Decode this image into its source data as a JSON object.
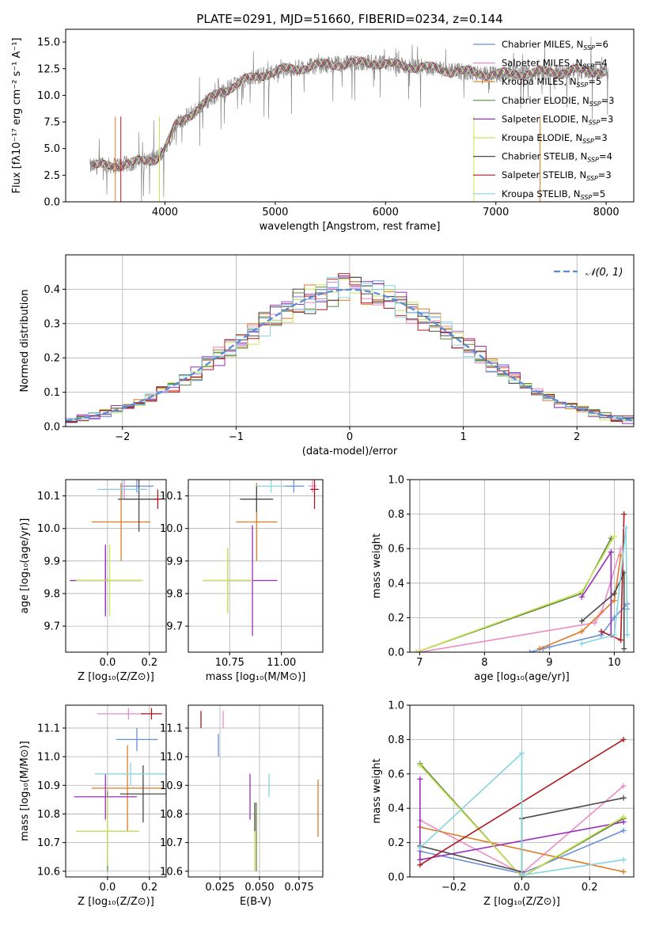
{
  "colors": {
    "chabrier_miles": "#6a8fd8",
    "salpeter_miles": "#ec8bc3",
    "kroupa_miles": "#e07b26",
    "chabrier_elodie": "#5f8a3c",
    "salpeter_elodie": "#9a2fbf",
    "kroupa_elodie": "#cde35c",
    "chabrier_stelib": "#4a4a4a",
    "salpeter_stelib": "#b0181f",
    "kroupa_stelib": "#86d6e0",
    "normal_curve": "#5b8bd6"
  },
  "chart_data": [
    {
      "id": "spectrum",
      "type": "line",
      "title": "PLATE=0291, MJD=51660, FIBERID=0234, z=0.144",
      "xlabel": "wavelength [Angstrom, rest frame]",
      "ylabel": "Flux [fλ10⁻¹⁷ erg cm⁻² s⁻¹ A⁻¹]",
      "xlim": [
        3100,
        8250
      ],
      "ylim": [
        0,
        16.2
      ],
      "xticks": [
        4000,
        5000,
        6000,
        7000,
        8000
      ],
      "yticks": [
        0.0,
        2.5,
        5.0,
        7.5,
        10.0,
        12.5,
        15.0
      ],
      "data_range": [
        3320,
        8020
      ],
      "continuum": [
        [
          3320,
          3.3
        ],
        [
          3500,
          3.4
        ],
        [
          3700,
          3.6
        ],
        [
          3900,
          4.0
        ],
        [
          3980,
          4.6
        ],
        [
          4100,
          7.2
        ],
        [
          4300,
          8.8
        ],
        [
          4500,
          10.3
        ],
        [
          4700,
          11.3
        ],
        [
          4900,
          12.0
        ],
        [
          5100,
          12.4
        ],
        [
          5300,
          12.7
        ],
        [
          5500,
          12.9
        ],
        [
          5700,
          13.0
        ],
        [
          5900,
          13.1
        ],
        [
          6100,
          12.8
        ],
        [
          6300,
          12.7
        ],
        [
          6500,
          12.4
        ],
        [
          6700,
          12.2
        ],
        [
          6900,
          12.0
        ],
        [
          7100,
          12.0
        ],
        [
          7300,
          12.1
        ],
        [
          7500,
          12.2
        ],
        [
          7700,
          12.3
        ],
        [
          7900,
          12.3
        ],
        [
          8020,
          12.2
        ]
      ],
      "legend": [
        {
          "label": "Chabrier MILES, N",
          "sub": "SSP",
          "n": "=6",
          "color": "#6a8fd8"
        },
        {
          "label": "Salpeter MILES, N",
          "sub": "SSP",
          "n": "=4",
          "color": "#ec8bc3"
        },
        {
          "label": "Kroupa MILES, N",
          "sub": "SSP",
          "n": "=5",
          "color": "#e07b26"
        },
        {
          "label": "Chabrier ELODIE, N",
          "sub": "SSP",
          "n": "=3",
          "color": "#5f8a3c"
        },
        {
          "label": "Salpeter ELODIE, N",
          "sub": "SSP",
          "n": "=3",
          "color": "#9a2fbf"
        },
        {
          "label": "Kroupa ELODIE, N",
          "sub": "SSP",
          "n": "=3",
          "color": "#cde35c"
        },
        {
          "label": "Chabrier STELIB, N",
          "sub": "SSP",
          "n": "=4",
          "color": "#4a4a4a"
        },
        {
          "label": "Salpeter STELIB, N",
          "sub": "SSP",
          "n": "=3",
          "color": "#b0181f"
        },
        {
          "label": "Kroupa STELIB, N",
          "sub": "SSP",
          "n": "=5",
          "color": "#86d6e0"
        }
      ]
    },
    {
      "id": "residuals",
      "type": "histogram",
      "xlabel": "(data-model)/error",
      "ylabel": "Normed distribution",
      "xlim": [
        -2.5,
        2.5
      ],
      "ylim": [
        0,
        0.5
      ],
      "xticks": [
        -2,
        -1,
        0,
        1,
        2
      ],
      "yticks": [
        0.0,
        0.1,
        0.2,
        0.3,
        0.4
      ],
      "grid": true,
      "bins": 50,
      "legend": [
        {
          "label": "𝒩(0, 1)",
          "color": "#5b8bd6",
          "style": "dashed"
        }
      ]
    },
    {
      "id": "age_vs_Z",
      "type": "errorbar",
      "xlabel": "Z [log₁₀(Z/Z⊙)]",
      "ylabel": "age  [log₁₀(age/yr)]",
      "xlim": [
        -0.2,
        0.28
      ],
      "ylim": [
        9.62,
        10.15
      ],
      "xticks": [
        0.0,
        0.2
      ],
      "yticks": [
        9.7,
        9.8,
        9.9,
        10.0,
        10.1
      ],
      "grid": true,
      "points": [
        {
          "x": 0.14,
          "y": 10.13,
          "xerr": 0.08,
          "yerr": 0.02,
          "color": "#6a8fd8"
        },
        {
          "x": 0.08,
          "y": 10.12,
          "xerr": 0.1,
          "yerr": 0.03,
          "color": "#ec8bc3"
        },
        {
          "x": 0.065,
          "y": 10.02,
          "xerr": 0.14,
          "yerr": 0.12,
          "color": "#e07b26"
        },
        {
          "x": -0.01,
          "y": 9.84,
          "xerr": 0.17,
          "yerr": 0.1,
          "color": "#5f8a3c"
        },
        {
          "x": -0.01,
          "y": 9.84,
          "xerr": 0.17,
          "yerr": 0.11,
          "color": "#9a2fbf"
        },
        {
          "x": 0.01,
          "y": 9.84,
          "xerr": 0.16,
          "yerr": 0.11,
          "color": "#cde35c"
        },
        {
          "x": 0.15,
          "y": 10.09,
          "xerr": 0.1,
          "yerr": 0.1,
          "color": "#4a4a4a"
        },
        {
          "x": 0.24,
          "y": 10.09,
          "xerr": 0.02,
          "yerr": 0.03,
          "color": "#b0181f"
        },
        {
          "x": 0.07,
          "y": 10.12,
          "xerr": 0.12,
          "yerr": 0.03,
          "color": "#86d6e0"
        }
      ]
    },
    {
      "id": "age_vs_mass",
      "type": "errorbar",
      "xlabel": "mass [log₁₀(M/M⊙)]",
      "ylabel": "",
      "xlim": [
        10.55,
        11.2
      ],
      "ylim": [
        9.62,
        10.15
      ],
      "xticks": [
        10.75,
        11.0
      ],
      "yticks": [
        9.7,
        9.8,
        9.9,
        10.0,
        10.1
      ],
      "grid": true,
      "points": [
        {
          "x": 11.06,
          "y": 10.13,
          "xerr": 0.05,
          "yerr": 0.02,
          "color": "#6a8fd8"
        },
        {
          "x": 11.15,
          "y": 10.13,
          "xerr": 0.02,
          "yerr": 0.02,
          "color": "#ec8bc3"
        },
        {
          "x": 10.88,
          "y": 10.02,
          "xerr": 0.1,
          "yerr": 0.12,
          "color": "#e07b26"
        },
        {
          "x": 10.74,
          "y": 9.84,
          "xerr": 0.12,
          "yerr": 0.1,
          "color": "#5f8a3c"
        },
        {
          "x": 10.86,
          "y": 9.84,
          "xerr": 0.12,
          "yerr": 0.17,
          "color": "#9a2fbf"
        },
        {
          "x": 10.74,
          "y": 9.84,
          "xerr": 0.12,
          "yerr": 0.1,
          "color": "#cde35c"
        },
        {
          "x": 10.88,
          "y": 10.09,
          "xerr": 0.08,
          "yerr": 0.04,
          "color": "#4a4a4a"
        },
        {
          "x": 11.16,
          "y": 10.12,
          "xerr": 0.02,
          "yerr": 0.06,
          "color": "#b0181f"
        },
        {
          "x": 10.95,
          "y": 10.13,
          "xerr": 0.07,
          "yerr": 0.02,
          "color": "#86d6e0"
        }
      ]
    },
    {
      "id": "massweight_vs_age",
      "type": "line",
      "xlabel": "age  [log₁₀(age/yr)]",
      "ylabel": "mass weight",
      "xlim": [
        6.85,
        10.3
      ],
      "ylim": [
        0,
        1
      ],
      "xticks": [
        7,
        8,
        9,
        10
      ],
      "yticks": [
        0.0,
        0.2,
        0.4,
        0.6,
        0.8,
        1.0
      ],
      "grid": true,
      "series": [
        {
          "color": "#6a8fd8",
          "points": [
            [
              8.7,
              0.0
            ],
            [
              8.9,
              0.02
            ],
            [
              9.0,
              0.03
            ],
            [
              9.8,
              0.1
            ],
            [
              10.0,
              0.2
            ],
            [
              10.2,
              0.28
            ],
            [
              10.2,
              0.25
            ]
          ]
        },
        {
          "color": "#ec8bc3",
          "points": [
            [
              7.0,
              0.0
            ],
            [
              9.7,
              0.17
            ],
            [
              9.8,
              0.23
            ],
            [
              10.1,
              0.6
            ]
          ]
        },
        {
          "color": "#e07b26",
          "points": [
            [
              8.85,
              0.02
            ],
            [
              9.5,
              0.12
            ],
            [
              10.0,
              0.3
            ],
            [
              10.1,
              0.56
            ]
          ]
        },
        {
          "color": "#5f8a3c",
          "points": [
            [
              6.95,
              0.0
            ],
            [
              9.5,
              0.34
            ],
            [
              9.95,
              0.66
            ]
          ]
        },
        {
          "color": "#9a2fbf",
          "points": [
            [
              9.5,
              0.32
            ],
            [
              9.95,
              0.58
            ],
            [
              9.95,
              0.1
            ]
          ]
        },
        {
          "color": "#cde35c",
          "points": [
            [
              6.95,
              0.0
            ],
            [
              9.5,
              0.35
            ],
            [
              10.0,
              0.67
            ]
          ]
        },
        {
          "color": "#4a4a4a",
          "points": [
            [
              9.5,
              0.18
            ],
            [
              10.0,
              0.34
            ],
            [
              10.15,
              0.46
            ],
            [
              10.15,
              0.02
            ]
          ]
        },
        {
          "color": "#b0181f",
          "points": [
            [
              9.8,
              0.12
            ],
            [
              10.1,
              0.07
            ],
            [
              10.15,
              0.8
            ]
          ]
        },
        {
          "color": "#86d6e0",
          "points": [
            [
              9.5,
              0.05
            ],
            [
              10.0,
              0.1
            ],
            [
              10.18,
              0.72
            ],
            [
              10.2,
              0.1
            ]
          ]
        }
      ]
    },
    {
      "id": "mass_vs_Z",
      "type": "errorbar",
      "xlabel": "Z [log₁₀(Z/Z⊙)]",
      "ylabel": "mass [log₁₀(M/M⊙)]",
      "xlim": [
        -0.2,
        0.28
      ],
      "ylim": [
        10.58,
        11.18
      ],
      "xticks": [
        0.0,
        0.2
      ],
      "yticks": [
        10.6,
        10.7,
        10.8,
        10.9,
        11.0,
        11.1
      ],
      "grid": true,
      "points": [
        {
          "x": 0.14,
          "y": 11.06,
          "xerr": 0.1,
          "yerr": 0.04,
          "color": "#6a8fd8"
        },
        {
          "x": 0.1,
          "y": 11.15,
          "xerr": 0.15,
          "yerr": 0.02,
          "color": "#ec8bc3"
        },
        {
          "x": 0.095,
          "y": 10.89,
          "xerr": 0.17,
          "yerr": 0.15,
          "color": "#e07b26"
        },
        {
          "x": 0.0,
          "y": 10.74,
          "xerr": 0.15,
          "yerr": 0.14,
          "color": "#5f8a3c"
        },
        {
          "x": -0.01,
          "y": 10.86,
          "xerr": 0.15,
          "yerr": 0.08,
          "color": "#9a2fbf"
        },
        {
          "x": 0.0,
          "y": 10.74,
          "xerr": 0.15,
          "yerr": 0.12,
          "color": "#cde35c"
        },
        {
          "x": 0.17,
          "y": 10.87,
          "xerr": 0.11,
          "yerr": 0.1,
          "color": "#4a4a4a"
        },
        {
          "x": 0.21,
          "y": 11.15,
          "xerr": 0.05,
          "yerr": 0.02,
          "color": "#b0181f"
        },
        {
          "x": 0.11,
          "y": 10.94,
          "xerr": 0.17,
          "yerr": 0.04,
          "color": "#86d6e0"
        }
      ]
    },
    {
      "id": "mass_vs_ebv",
      "type": "errorbar",
      "xlabel": "E(B-V)",
      "ylabel": "",
      "xlim": [
        0.005,
        0.09
      ],
      "ylim": [
        10.58,
        11.18
      ],
      "xticks": [
        0.025,
        0.05,
        0.075
      ],
      "xticklabels": [
        "0.025",
        "0.050",
        "0.075"
      ],
      "yticks": [
        10.6,
        10.7,
        10.8,
        10.9,
        11.0,
        11.1
      ],
      "grid": true,
      "points": [
        {
          "x": 0.024,
          "y": 11.04,
          "xerr": 0.0,
          "yerr": 0.04,
          "color": "#6a8fd8"
        },
        {
          "x": 0.027,
          "y": 11.13,
          "xerr": 0.0,
          "yerr": 0.03,
          "color": "#ec8bc3"
        },
        {
          "x": 0.087,
          "y": 10.82,
          "xerr": 0.0,
          "yerr": 0.1,
          "color": "#e07b26"
        },
        {
          "x": 0.048,
          "y": 10.72,
          "xerr": 0.0,
          "yerr": 0.12,
          "color": "#5f8a3c"
        },
        {
          "x": 0.044,
          "y": 10.86,
          "xerr": 0.0,
          "yerr": 0.08,
          "color": "#9a2fbf"
        },
        {
          "x": 0.047,
          "y": 10.7,
          "xerr": 0.0,
          "yerr": 0.1,
          "color": "#cde35c"
        },
        {
          "x": 0.047,
          "y": 10.79,
          "xerr": 0.0,
          "yerr": 0.05,
          "color": "#4a4a4a"
        },
        {
          "x": 0.013,
          "y": 11.13,
          "xerr": 0.0,
          "yerr": 0.03,
          "color": "#b0181f"
        },
        {
          "x": 0.056,
          "y": 10.9,
          "xerr": 0.0,
          "yerr": 0.04,
          "color": "#86d6e0"
        }
      ]
    },
    {
      "id": "massweight_vs_Z",
      "type": "line",
      "xlabel": "Z [log₁₀(Z/Z⊙)]",
      "ylabel": "mass weight",
      "xlim": [
        -0.33,
        0.33
      ],
      "ylim": [
        0,
        1
      ],
      "xticks": [
        -0.2,
        0.0,
        0.2
      ],
      "yticks": [
        0.0,
        0.2,
        0.4,
        0.6,
        0.8,
        1.0
      ],
      "grid": true,
      "series": [
        {
          "color": "#6a8fd8",
          "points": [
            [
              -0.3,
              0.15
            ],
            [
              0.0,
              0.02
            ],
            [
              0.3,
              0.27
            ]
          ]
        },
        {
          "color": "#ec8bc3",
          "points": [
            [
              -0.3,
              0.33
            ],
            [
              0.0,
              0.02
            ],
            [
              0.3,
              0.53
            ]
          ]
        },
        {
          "color": "#e07b26",
          "points": [
            [
              -0.3,
              0.29
            ],
            [
              0.3,
              0.03
            ]
          ]
        },
        {
          "color": "#5f8a3c",
          "points": [
            [
              -0.3,
              0.66
            ],
            [
              0.0,
              0.0
            ],
            [
              0.3,
              0.34
            ]
          ]
        },
        {
          "color": "#9a2fbf",
          "points": [
            [
              -0.3,
              0.57
            ],
            [
              -0.3,
              0.1
            ],
            [
              0.3,
              0.32
            ]
          ]
        },
        {
          "color": "#cde35c",
          "points": [
            [
              -0.3,
              0.65
            ],
            [
              0.0,
              0.0
            ],
            [
              0.3,
              0.35
            ]
          ]
        },
        {
          "color": "#4a4a4a",
          "points": [
            [
              -0.3,
              0.18
            ],
            [
              0.0,
              0.03
            ],
            [
              0.0,
              0.34
            ],
            [
              0.3,
              0.46
            ]
          ]
        },
        {
          "color": "#b0181f",
          "points": [
            [
              -0.3,
              0.07
            ],
            [
              0.3,
              0.8
            ]
          ]
        },
        {
          "color": "#86d6e0",
          "points": [
            [
              -0.3,
              0.17
            ],
            [
              0.0,
              0.72
            ],
            [
              0.0,
              0.01
            ],
            [
              0.3,
              0.1
            ]
          ]
        }
      ]
    }
  ]
}
